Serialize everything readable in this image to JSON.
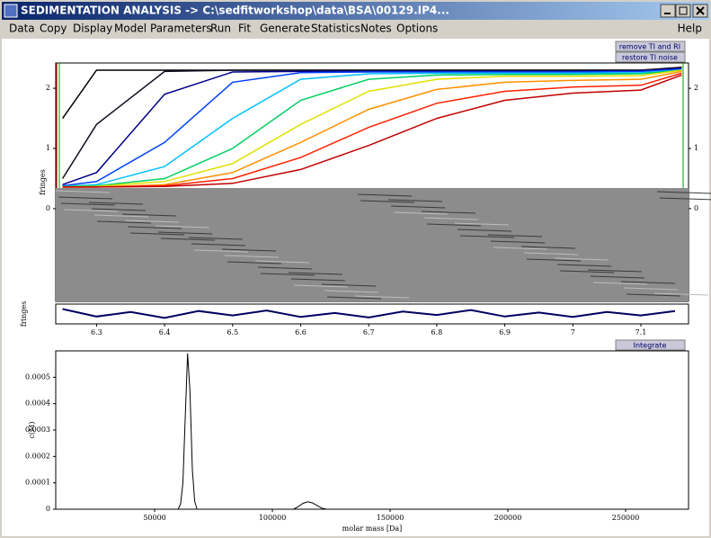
{
  "window": {
    "title": "SEDIMENTATION ANALYSIS -> C:\\sedfitworkshop\\data\\BSA\\00129.IP4..."
  },
  "menu": [
    "Data",
    "Copy",
    "Display",
    "Model",
    "Parameters",
    "Run",
    "Fit",
    "Generate",
    "Statistics",
    "Notes",
    "Options"
  ],
  "help": "Help",
  "buttons": [
    "remove TI and RI",
    "restore TI noise",
    "Integrate"
  ],
  "chart_data": [
    {
      "type": "line",
      "ylabel": "fringes",
      "x": [
        6.25,
        6.3,
        6.4,
        6.5,
        6.6,
        6.7,
        6.8,
        6.9,
        7.0,
        7.1,
        7.16
      ],
      "xlim": [
        6.24,
        7.17
      ],
      "ylim": [
        -1.54,
        2.42
      ],
      "yticks": [
        0,
        1,
        2
      ],
      "series": [
        {
          "color": "#000000",
          "values": [
            1.5,
            2.3,
            2.3,
            2.3,
            2.3,
            2.3,
            2.3,
            2.3,
            2.3,
            2.3,
            2.35
          ]
        },
        {
          "color": "#101020",
          "values": [
            0.5,
            1.4,
            2.28,
            2.3,
            2.3,
            2.3,
            2.3,
            2.3,
            2.3,
            2.3,
            2.34
          ]
        },
        {
          "color": "#00008b",
          "values": [
            0.4,
            0.6,
            1.9,
            2.27,
            2.28,
            2.28,
            2.28,
            2.28,
            2.28,
            2.29,
            2.33
          ]
        },
        {
          "color": "#0040ff",
          "values": [
            0.38,
            0.45,
            1.1,
            2.1,
            2.26,
            2.27,
            2.27,
            2.27,
            2.27,
            2.28,
            2.32
          ]
        },
        {
          "color": "#00c0ff",
          "values": [
            0.37,
            0.4,
            0.7,
            1.5,
            2.15,
            2.24,
            2.25,
            2.25,
            2.25,
            2.26,
            2.3
          ]
        },
        {
          "color": "#00d060",
          "values": [
            0.37,
            0.38,
            0.5,
            1.0,
            1.8,
            2.15,
            2.22,
            2.23,
            2.23,
            2.24,
            2.3
          ]
        },
        {
          "color": "#e0e000",
          "values": [
            0.36,
            0.37,
            0.45,
            0.75,
            1.4,
            1.95,
            2.15,
            2.2,
            2.2,
            2.21,
            2.3
          ]
        },
        {
          "color": "#ff9000",
          "values": [
            0.36,
            0.36,
            0.4,
            0.6,
            1.1,
            1.65,
            1.98,
            2.1,
            2.13,
            2.15,
            2.28
          ]
        },
        {
          "color": "#ff2000",
          "values": [
            0.36,
            0.36,
            0.38,
            0.5,
            0.85,
            1.35,
            1.75,
            1.95,
            2.02,
            2.05,
            2.25
          ]
        },
        {
          "color": "#c00000",
          "values": [
            0.36,
            0.36,
            0.37,
            0.42,
            0.65,
            1.05,
            1.5,
            1.8,
            1.92,
            1.97,
            2.22
          ]
        }
      ]
    },
    {
      "type": "line",
      "ylabel": "fringes",
      "color": "#000060",
      "x": [
        6.25,
        6.3,
        6.35,
        6.4,
        6.45,
        6.5,
        6.55,
        6.6,
        6.65,
        6.7,
        6.75,
        6.8,
        6.85,
        6.9,
        6.95,
        7.0,
        7.05,
        7.1,
        7.15
      ],
      "values": [
        0.01,
        -0.005,
        0.004,
        -0.008,
        0.006,
        -0.003,
        0.007,
        -0.006,
        0.002,
        -0.007,
        0.005,
        -0.002,
        0.008,
        -0.005,
        0.003,
        -0.006,
        0.004,
        -0.003,
        0.006
      ],
      "xlim": [
        6.24,
        7.17
      ],
      "ylim": [
        -0.02,
        0.02
      ],
      "xticks": [
        6.3,
        6.4,
        6.5,
        6.6,
        6.7,
        6.8,
        6.9,
        7,
        7.1
      ]
    },
    {
      "type": "line",
      "ylabel": "c(M)",
      "xlabel": "molar mass [Da]",
      "color": "#000000",
      "x": [
        8000,
        55000,
        60000,
        61000,
        62000,
        63000,
        64000,
        65000,
        66000,
        67000,
        68000,
        75000,
        105000,
        109000,
        111000,
        113000,
        115000,
        117000,
        119000,
        121000,
        123000,
        276700
      ],
      "values": [
        0,
        0,
        0,
        2e-05,
        0.0001,
        0.00035,
        0.00059,
        0.00045,
        0.00015,
        3e-05,
        0,
        0,
        0,
        0,
        1e-05,
        2.2e-05,
        2.8e-05,
        2.4e-05,
        1.4e-05,
        4e-06,
        0,
        0
      ],
      "xlim": [
        8000,
        276700
      ],
      "ylim": [
        0,
        0.0006
      ],
      "xticks": [
        50000,
        100000,
        150000,
        200000,
        250000
      ],
      "yticks": [
        0,
        0.0001,
        0.0002,
        0.0003,
        0.0004,
        0.0005
      ]
    }
  ]
}
